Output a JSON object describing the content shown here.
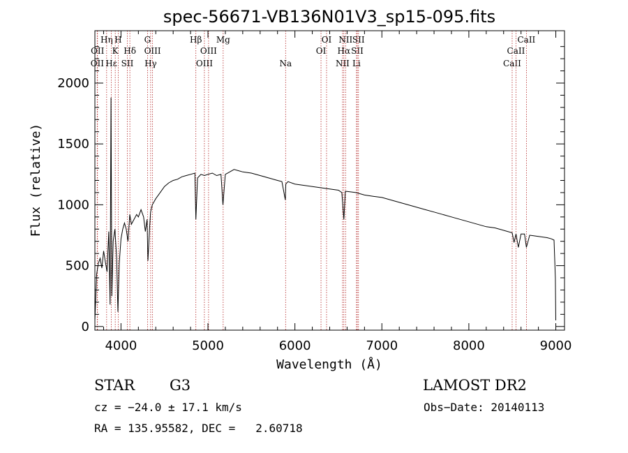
{
  "chart_data": {
    "type": "line",
    "title": "spec-56671-VB136N01V3_sp15-095.fits",
    "xlabel": "Wavelength (Å)",
    "ylabel": "Flux (relative)",
    "xlim": [
      3700,
      9100
    ],
    "ylim": [
      -30,
      2430
    ],
    "xticks": [
      4000,
      5000,
      6000,
      7000,
      8000,
      9000
    ],
    "yticks": [
      0,
      500,
      1000,
      1500,
      2000
    ],
    "series": [
      {
        "name": "spectrum",
        "x": [
          3700,
          3720,
          3740,
          3760,
          3780,
          3800,
          3820,
          3840,
          3860,
          3875,
          3885,
          3895,
          3910,
          3930,
          3950,
          3965,
          3980,
          4000,
          4020,
          4040,
          4060,
          4080,
          4101,
          4120,
          4150,
          4180,
          4200,
          4230,
          4260,
          4280,
          4300,
          4310,
          4330,
          4340,
          4360,
          4400,
          4450,
          4500,
          4550,
          4600,
          4650,
          4700,
          4750,
          4800,
          4850,
          4861,
          4880,
          4920,
          4960,
          5000,
          5050,
          5100,
          5150,
          5172,
          5200,
          5250,
          5300,
          5350,
          5400,
          5500,
          5600,
          5700,
          5800,
          5850,
          5890,
          5895,
          5920,
          6000,
          6100,
          6200,
          6300,
          6400,
          6500,
          6540,
          6563,
          6580,
          6600,
          6700,
          6800,
          6900,
          7000,
          7100,
          7200,
          7300,
          7400,
          7500,
          7600,
          7700,
          7800,
          7900,
          8000,
          8100,
          8200,
          8300,
          8400,
          8498,
          8520,
          8542,
          8570,
          8600,
          8640,
          8662,
          8700,
          8800,
          8900,
          8950,
          8980,
          8995,
          9000
        ],
        "values": [
          50,
          430,
          520,
          560,
          480,
          620,
          530,
          450,
          780,
          180,
          1880,
          250,
          700,
          800,
          560,
          120,
          520,
          720,
          800,
          850,
          800,
          700,
          920,
          840,
          880,
          920,
          900,
          960,
          900,
          780,
          880,
          540,
          820,
          940,
          1000,
          1050,
          1100,
          1150,
          1180,
          1200,
          1210,
          1230,
          1240,
          1250,
          1260,
          880,
          1220,
          1250,
          1240,
          1250,
          1260,
          1240,
          1250,
          1000,
          1250,
          1270,
          1290,
          1280,
          1270,
          1260,
          1240,
          1220,
          1200,
          1190,
          1040,
          1170,
          1190,
          1170,
          1160,
          1150,
          1140,
          1130,
          1120,
          1100,
          880,
          1110,
          1110,
          1100,
          1080,
          1070,
          1060,
          1040,
          1020,
          1000,
          980,
          960,
          940,
          920,
          900,
          880,
          860,
          840,
          820,
          810,
          790,
          770,
          690,
          760,
          650,
          760,
          760,
          650,
          750,
          740,
          730,
          720,
          710,
          400,
          50
        ]
      }
    ],
    "lines": [
      {
        "label": "OII",
        "row": 3,
        "x": 3727
      },
      {
        "label": "OII",
        "row": 2,
        "x": 3730
      },
      {
        "label": "Hη",
        "row": 1,
        "x": 3835
      },
      {
        "label": "Hε",
        "row": 3,
        "x": 3889
      },
      {
        "label": "K",
        "row": 2,
        "x": 3934
      },
      {
        "label": "H",
        "row": 1,
        "x": 3968
      },
      {
        "label": "SII",
        "row": 3,
        "x": 4073
      },
      {
        "label": "Hδ",
        "row": 2,
        "x": 4102
      },
      {
        "label": "G",
        "row": 1,
        "x": 4305
      },
      {
        "label": "Hγ",
        "row": 3,
        "x": 4341
      },
      {
        "label": "OIII",
        "row": 2,
        "x": 4363
      },
      {
        "label": "Hβ",
        "row": 1,
        "x": 4861
      },
      {
        "label": "OIII",
        "row": 3,
        "x": 4959
      },
      {
        "label": "OIII",
        "row": 2,
        "x": 5007
      },
      {
        "label": "Mg",
        "row": 1,
        "x": 5175
      },
      {
        "label": "Na",
        "row": 3,
        "x": 5893
      },
      {
        "label": "OI",
        "row": 2,
        "x": 6300
      },
      {
        "label": "OI",
        "row": 1,
        "x": 6364
      },
      {
        "label": "NII",
        "row": 3,
        "x": 6548
      },
      {
        "label": "Hα",
        "row": 2,
        "x": 6563
      },
      {
        "label": "NII",
        "row": 1,
        "x": 6583
      },
      {
        "label": "Li",
        "row": 3,
        "x": 6708
      },
      {
        "label": "SII",
        "row": 2,
        "x": 6717
      },
      {
        "label": "SII",
        "row": 1,
        "x": 6731
      },
      {
        "label": "CaII",
        "row": 3,
        "x": 8498
      },
      {
        "label": "CaII",
        "row": 2,
        "x": 8542
      },
      {
        "label": "CaII",
        "row": 1,
        "x": 8662
      }
    ]
  },
  "info": {
    "class_label": "STAR",
    "subclass": "G3",
    "survey": "LAMOST DR2",
    "cz": "cz = −24.0 ± 17.1 km/s",
    "obs_date": "Obs−Date: 20140113",
    "radec": "RA = 135.95582, DEC =   2.60718"
  }
}
